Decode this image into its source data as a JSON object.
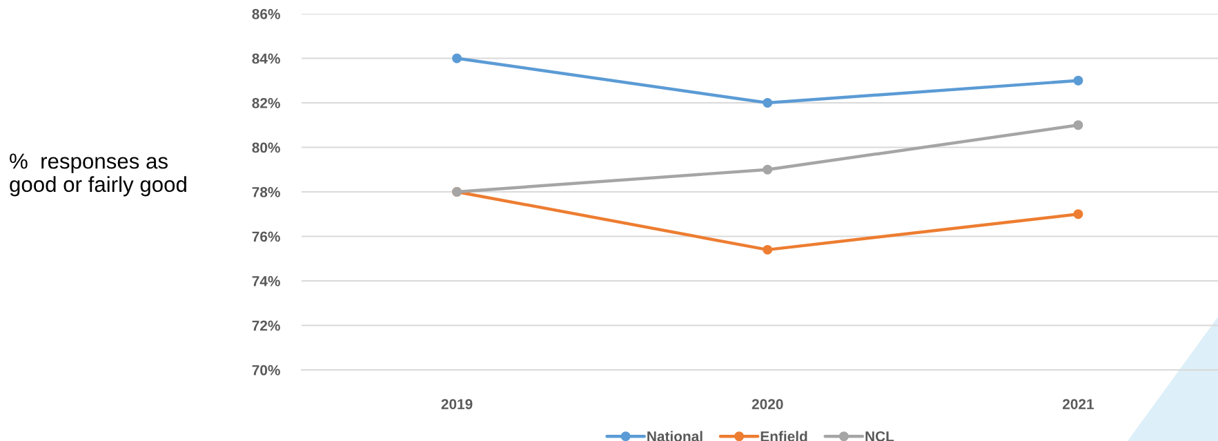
{
  "chart_data": {
    "type": "line",
    "annotations": [
      "%  responses as\ngood or fairly good"
    ],
    "categories": [
      "2019",
      "2020",
      "2021"
    ],
    "series": [
      {
        "name": "National",
        "color": "#5b9bd5",
        "values": [
          84,
          82,
          83
        ]
      },
      {
        "name": "Enfield",
        "color": "#ed7d31",
        "values": [
          78,
          75.4,
          77
        ]
      },
      {
        "name": "NCL",
        "color": "#a5a5a5",
        "values": [
          78,
          79,
          81
        ]
      }
    ],
    "ylim": [
      70,
      86
    ],
    "yticks": [
      {
        "value": 70,
        "label": "70%"
      },
      {
        "value": 72,
        "label": "72%"
      },
      {
        "value": 74,
        "label": "74%"
      },
      {
        "value": 76,
        "label": "76%"
      },
      {
        "value": 78,
        "label": "78%"
      },
      {
        "value": 80,
        "label": "80%"
      },
      {
        "value": 82,
        "label": "82%"
      },
      {
        "value": 84,
        "label": "84%"
      },
      {
        "value": 86,
        "label": "86%"
      }
    ],
    "grid": "y",
    "legend": "bottom",
    "marker": "circle",
    "line_style": "solid"
  }
}
